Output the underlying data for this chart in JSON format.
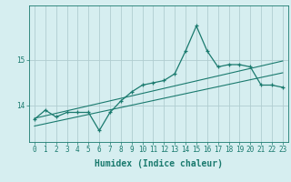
{
  "xlabel": "Humidex (Indice chaleur)",
  "ylabel": "",
  "bg_color": "#d6eef0",
  "grid_color": "#b0cdd0",
  "line_color": "#1a7a6e",
  "x_values": [
    0,
    1,
    2,
    3,
    4,
    5,
    6,
    7,
    8,
    9,
    10,
    11,
    12,
    13,
    14,
    15,
    16,
    17,
    18,
    19,
    20,
    21,
    22,
    23
  ],
  "y_values": [
    13.7,
    13.9,
    13.75,
    13.85,
    13.85,
    13.85,
    13.45,
    13.85,
    14.1,
    14.3,
    14.45,
    14.5,
    14.55,
    14.7,
    15.2,
    15.75,
    15.2,
    14.85,
    14.9,
    14.9,
    14.85,
    14.45,
    14.45,
    14.4
  ],
  "yticks": [
    14,
    15
  ],
  "ylim": [
    13.2,
    16.2
  ],
  "xlim": [
    -0.5,
    23.5
  ],
  "trend1_y": [
    13.72,
    14.98
  ],
  "trend2_y": [
    13.55,
    14.72
  ],
  "axis_fontsize": 6,
  "tick_fontsize": 5.5,
  "xlabel_fontsize": 7
}
